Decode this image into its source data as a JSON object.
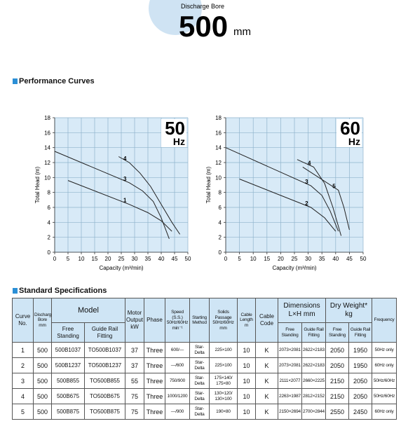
{
  "header": {
    "caption": "Discharge Bore",
    "size": "500",
    "unit": "mm"
  },
  "section_title": "Performance Curves",
  "chart_data": [
    {
      "type": "line",
      "label": "50",
      "unit_label": "Hz",
      "xlabel": "Capacity (m³/min)",
      "ylabel": "Total Head (m)",
      "xlim": [
        0,
        50
      ],
      "xticks": [
        0,
        5,
        10,
        15,
        20,
        25,
        30,
        35,
        40,
        45,
        50
      ],
      "ylim": [
        0,
        18
      ],
      "yticks": [
        0,
        2,
        4,
        6,
        8,
        10,
        12,
        14,
        16,
        18
      ],
      "grid": true,
      "series": [
        {
          "name": "1",
          "color": "#222222",
          "x": [
            5,
            28,
            35,
            40,
            44
          ],
          "values": [
            9.6,
            6.4,
            5.3,
            4.2,
            2.8
          ]
        },
        {
          "name": "3",
          "color": "#222222",
          "x": [
            0,
            28,
            33,
            37,
            40,
            43
          ],
          "values": [
            13.5,
            9.3,
            8.2,
            6.8,
            4.6,
            1.8
          ]
        },
        {
          "name": "4",
          "color": "#222222",
          "x": [
            24,
            28,
            32,
            36,
            40,
            44,
            47
          ],
          "values": [
            12.8,
            12.0,
            10.6,
            8.8,
            6.4,
            4.0,
            2.4
          ]
        }
      ]
    },
    {
      "type": "line",
      "label": "60",
      "unit_label": "Hz",
      "xlabel": "Capacity (m³/min)",
      "ylabel": "Total Head (m)",
      "xlim": [
        0,
        50
      ],
      "xticks": [
        0,
        5,
        10,
        15,
        20,
        25,
        30,
        35,
        40,
        45,
        50
      ],
      "ylim": [
        0,
        18
      ],
      "yticks": [
        0,
        2,
        4,
        6,
        8,
        10,
        12,
        14,
        16,
        18
      ],
      "grid": true,
      "series": [
        {
          "name": "2",
          "color": "#222222",
          "x": [
            5,
            31,
            36,
            40
          ],
          "values": [
            9.8,
            6.0,
            4.6,
            2.8
          ]
        },
        {
          "name": "3",
          "color": "#222222",
          "x": [
            0,
            31,
            35,
            38,
            41
          ],
          "values": [
            14.0,
            8.9,
            7.6,
            5.5,
            2.8
          ]
        },
        {
          "name": "4",
          "color": "#222222",
          "x": [
            26,
            32,
            36,
            39,
            42
          ],
          "values": [
            12.4,
            11.4,
            9.2,
            6.0,
            2.2
          ]
        },
        {
          "name": "5",
          "color": "#222222",
          "x": [
            28,
            41,
            43,
            45
          ],
          "values": [
            11.4,
            8.3,
            6.0,
            3.0
          ]
        }
      ]
    }
  ],
  "table": {
    "title": "Standard Specifications",
    "headers": {
      "curve": "Curve No.",
      "bore": "Discharge Bore mm",
      "model": "Model",
      "model_free": "Free Standing",
      "model_guide": "Guide Rail Fitting",
      "motor": "Motor Output kW",
      "phase": "Phase",
      "speed": "Speed (S.S.) 50Hz/60Hz min⁻¹",
      "starting": "Starting Method",
      "solids": "Solids Passage 50Hz/60Hz mm",
      "cable_length": "Cable Length m",
      "cable_code": "Cable Code",
      "dimensions": "Dimensions L×H mm",
      "dim_free": "Free Standing",
      "dim_guide": "Guide Rail Fitting",
      "weight": "Dry Weight* kg",
      "weight_free": "Free Standing",
      "weight_guide": "Guide Rail Fitting",
      "frequency": "Frequency"
    },
    "rows": [
      [
        "1",
        "500",
        "500B1037",
        "TO500B1037",
        "37",
        "Three",
        "600/—",
        "Star-Delta",
        "225×100",
        "10",
        "K",
        "2073×2081",
        "2622×2183",
        "2050",
        "1950",
        "50Hz only"
      ],
      [
        "2",
        "500",
        "500B1237",
        "TO500B1237",
        "37",
        "Three",
        "—/600",
        "Star-Delta",
        "225×100",
        "10",
        "K",
        "2073×2081",
        "2622×2183",
        "2050",
        "1950",
        "60Hz only"
      ],
      [
        "3",
        "500",
        "500B855",
        "TO500B855",
        "55",
        "Three",
        "750/900",
        "Star-Delta",
        "175×140/ 175×80",
        "10",
        "K",
        "2111×2077",
        "2660×2225",
        "2150",
        "2050",
        "50Hz/60Hz"
      ],
      [
        "4",
        "500",
        "500B675",
        "TO500B675",
        "75",
        "Three",
        "1000/1200",
        "Star-Delta",
        "130×120/ 130×100",
        "10",
        "K",
        "2263×1987",
        "2812×2152",
        "2150",
        "2050",
        "50Hz/60Hz"
      ],
      [
        "5",
        "500",
        "500B875",
        "TO500B875",
        "75",
        "Three",
        "—/900",
        "Star-Delta",
        "190×80",
        "10",
        "K",
        "2150×2694",
        "2700×2844",
        "2550",
        "2450",
        "60Hz only"
      ]
    ]
  }
}
